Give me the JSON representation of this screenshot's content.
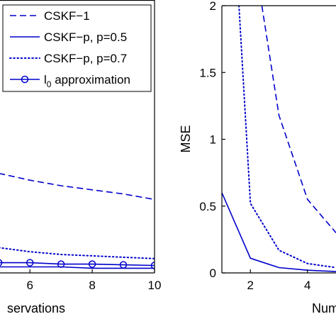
{
  "chart_data": [
    {
      "type": "line",
      "xlabel": "Number of observations",
      "ylabel": "",
      "xticks": [
        6,
        8,
        10
      ],
      "xlim": [
        5.04,
        10
      ],
      "ylim": [
        -0.034,
        1.95
      ],
      "grid": false,
      "legend_position": "top-right",
      "series": [
        {
          "name": "CSKF-1",
          "style": "dashed",
          "color": "#0000cc",
          "marker": "none",
          "x": [
            5,
            6,
            7,
            8,
            9,
            10
          ],
          "y": [
            0.69,
            0.64,
            0.6,
            0.57,
            0.54,
            0.5
          ]
        },
        {
          "name": "CSKF-p, p=0.5",
          "style": "solid",
          "color": "#0000cc",
          "marker": "none",
          "x": [
            5,
            6,
            7,
            8,
            9,
            10
          ],
          "y": [
            0.01,
            0.01,
            0.01,
            0.0,
            0.0,
            0.0
          ]
        },
        {
          "name": "CSKF-p, p=0.7",
          "style": "dotted",
          "color": "#0000cc",
          "marker": "none",
          "x": [
            5,
            6,
            7,
            8,
            9,
            10
          ],
          "y": [
            0.15,
            0.12,
            0.1,
            0.09,
            0.08,
            0.07
          ]
        },
        {
          "name": "l0 approximation",
          "style": "solid",
          "color": "#0000cc",
          "marker": "circle",
          "x": [
            5,
            6,
            7,
            8,
            9,
            10
          ],
          "y": [
            0.04,
            0.04,
            0.03,
            0.03,
            0.025,
            0.02
          ]
        }
      ]
    },
    {
      "type": "line",
      "xlabel": "Number of observations",
      "ylabel": "MSE",
      "xticks": [
        2,
        4
      ],
      "yticks": [
        "0",
        "0.5",
        "1",
        "1.5",
        "2"
      ],
      "xlim": [
        1,
        5
      ],
      "ylim": [
        0,
        2
      ],
      "grid": false,
      "series": [
        {
          "name": "CSKF-1",
          "style": "dashed",
          "color": "#0000cc",
          "x": [
            2.4,
            3,
            4,
            5
          ],
          "y": [
            2.0,
            1.18,
            0.55,
            0.3
          ]
        },
        {
          "name": "CSKF-p, p=0.5",
          "style": "solid",
          "color": "#0000cc",
          "x": [
            1,
            2,
            3,
            4,
            5
          ],
          "y": [
            0.6,
            0.11,
            0.04,
            0.02,
            0.01
          ]
        },
        {
          "name": "CSKF-p, p=0.7",
          "style": "dotted",
          "color": "#0000cc",
          "x": [
            1.6,
            2,
            3,
            4,
            5
          ],
          "y": [
            2.0,
            0.52,
            0.17,
            0.07,
            0.04
          ]
        }
      ]
    }
  ],
  "legend": {
    "items": [
      {
        "label": "CSKF−1",
        "style": "dashed"
      },
      {
        "label": "CSKF−p, p=0.5",
        "style": "solid"
      },
      {
        "label": "CSKF−p, p=0.7",
        "style": "dotted"
      },
      {
        "label": "l",
        "sub": "0",
        "suffix": " approximation",
        "style": "circle"
      }
    ]
  },
  "panels": {
    "left": {
      "xlabel_visible": "servations"
    },
    "right": {
      "xlabel_visible": "Num",
      "ylabel": "MSE"
    }
  },
  "colors": {
    "series": "#0000cc",
    "axes": "#000000",
    "background": "#ffffff"
  }
}
